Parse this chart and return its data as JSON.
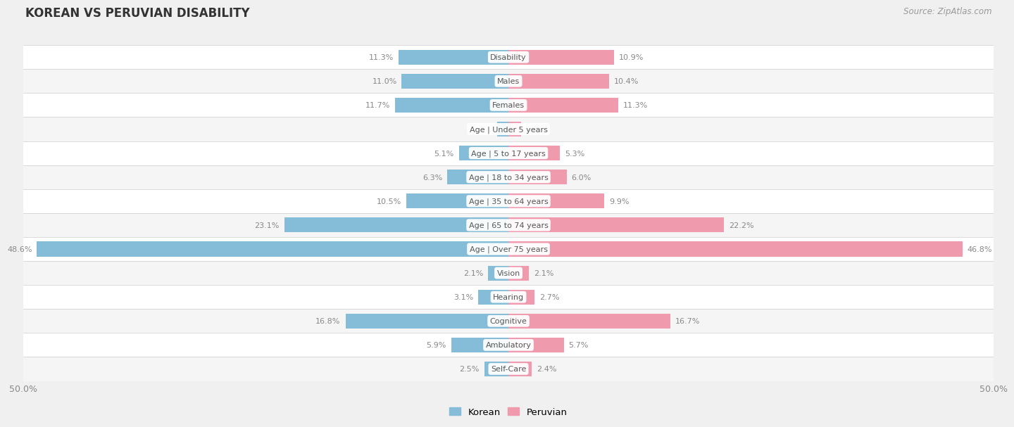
{
  "title": "KOREAN VS PERUVIAN DISABILITY",
  "source": "Source: ZipAtlas.com",
  "categories": [
    "Disability",
    "Males",
    "Females",
    "Age | Under 5 years",
    "Age | 5 to 17 years",
    "Age | 18 to 34 years",
    "Age | 35 to 64 years",
    "Age | 65 to 74 years",
    "Age | Over 75 years",
    "Vision",
    "Hearing",
    "Cognitive",
    "Ambulatory",
    "Self-Care"
  ],
  "korean_values": [
    11.3,
    11.0,
    11.7,
    1.2,
    5.1,
    6.3,
    10.5,
    23.1,
    48.6,
    2.1,
    3.1,
    16.8,
    5.9,
    2.5
  ],
  "peruvian_values": [
    10.9,
    10.4,
    11.3,
    1.3,
    5.3,
    6.0,
    9.9,
    22.2,
    46.8,
    2.1,
    2.7,
    16.7,
    5.7,
    2.4
  ],
  "korean_color": "#85bcd8",
  "peruvian_color": "#f09aae",
  "row_color_odd": "#f5f5f5",
  "row_color_even": "#ffffff",
  "background_color": "#f0f0f0",
  "max_val": 50.0,
  "label_fontsize": 8.0,
  "cat_fontsize": 8.0,
  "title_fontsize": 12,
  "source_fontsize": 8.5,
  "legend_labels": [
    "Korean",
    "Peruvian"
  ],
  "value_color": "#888888",
  "cat_label_color": "#555555"
}
